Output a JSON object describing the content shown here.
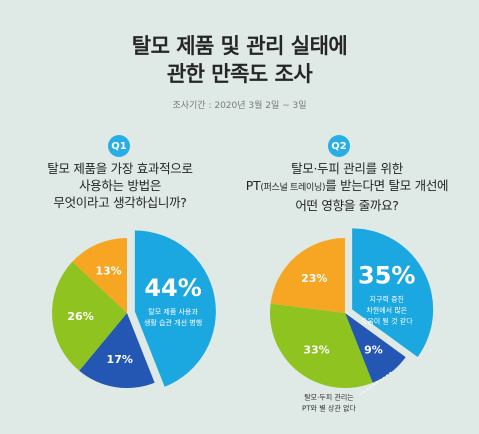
{
  "header": {
    "title_line1": "탈모 제품 및 관리 실태에",
    "title_line2": "관한 만족도 조사",
    "period": "조사기간 : 2020년 3월 2일 ~ 3일"
  },
  "q1": {
    "badge": "Q1",
    "question_line1": "탈모 제품을 가장 효과적으로",
    "question_line2": "사용하는 방법은",
    "question_line3": "무엇이라고 생각하십니까?"
  },
  "q2": {
    "badge": "Q2",
    "question_line1": "탈모·두피 관리를 위한",
    "question_line2_a": "PT",
    "question_line2_small": "(퍼스널 트레이닝)",
    "question_line2_b": "를 받는다면 탈모 개선에",
    "question_line3": "어떤 영향을 줄까요?"
  },
  "colors": {
    "blue": "#1ba7df",
    "navy": "#2456b4",
    "green": "#8fc31f",
    "orange": "#f6a623",
    "accent": "#27aee6"
  },
  "chart_data": [
    {
      "type": "pie",
      "title": "탈모 제품을 가장 효과적으로 사용하는 방법은 무엇이라고 생각하십니까?",
      "slices": [
        {
          "value": 44,
          "label": "44%",
          "desc_line1": "탈모 제품 사용과",
          "desc_line2": "생활 습관 개선 병행",
          "color": "#1ba7df"
        },
        {
          "value": 17,
          "label": "17%",
          "color": "#2456b4"
        },
        {
          "value": 26,
          "label": "26%",
          "color": "#8fc31f"
        },
        {
          "value": 13,
          "label": "13%",
          "color": "#f6a623"
        }
      ]
    },
    {
      "type": "pie",
      "title": "탈모·두피 관리를 위한 PT(퍼스널 트레이닝)를 받는다면 탈모 개선에 어떤 영향을 줄까요?",
      "slices": [
        {
          "value": 35,
          "label": "35%",
          "desc_line1": "지구력 증진",
          "desc_line2": "차원에서 많은",
          "desc_line3": "도움이 될 것 같다",
          "color": "#1ba7df"
        },
        {
          "value": 9,
          "label": "9%",
          "callout_line1": "탈모·두피 관리는",
          "callout_line2": "PT와 별 상관 없다",
          "color": "#2456b4"
        },
        {
          "value": 33,
          "label": "33%",
          "color": "#8fc31f"
        },
        {
          "value": 23,
          "label": "23%",
          "color": "#f6a623"
        }
      ]
    }
  ]
}
